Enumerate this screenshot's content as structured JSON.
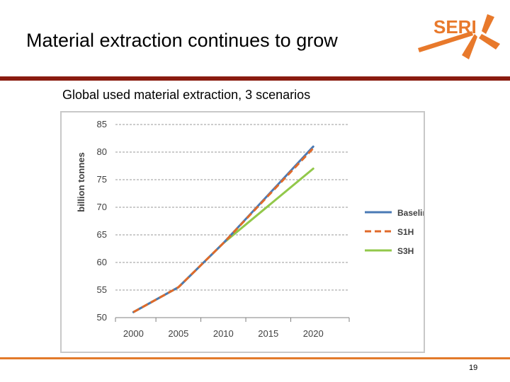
{
  "slide": {
    "title": "Material extraction continues to grow",
    "subtitle": "Global used material extraction, 3 scenarios",
    "page_number": "19",
    "logo_text": "SERI"
  },
  "colors": {
    "rule_top": "#8a1c10",
    "rule_bottom": "#e27a2a",
    "logo": "#e8792b",
    "baseline": "#4a7ab5",
    "s1h": "#e06a2a",
    "s3h": "#92c84a"
  },
  "chart_data": {
    "type": "line",
    "title": "",
    "xlabel": "",
    "ylabel": "billion tonnes",
    "x_ticks": [
      "2000",
      "2005",
      "2010",
      "2015",
      "2020"
    ],
    "y_ticks": [
      "50",
      "55",
      "60",
      "65",
      "70",
      "75",
      "80",
      "85"
    ],
    "xlim": [
      1998,
      2024
    ],
    "ylim": [
      50,
      85
    ],
    "grid": true,
    "legend_position": "right",
    "series": [
      {
        "name": "Baseline",
        "style": "solid",
        "color": "#4a7ab5",
        "x": [
          2000,
          2005,
          2010,
          2020
        ],
        "values": [
          51,
          55.5,
          63.5,
          81
        ]
      },
      {
        "name": "S1H",
        "style": "dashed",
        "color": "#e06a2a",
        "x": [
          2000,
          2005,
          2010,
          2020
        ],
        "values": [
          51,
          55.5,
          63.5,
          80.7
        ]
      },
      {
        "name": "S3H",
        "style": "solid",
        "color": "#92c84a",
        "x": [
          2000,
          2005,
          2010,
          2020
        ],
        "values": [
          51,
          55.5,
          63.5,
          77
        ]
      }
    ]
  }
}
